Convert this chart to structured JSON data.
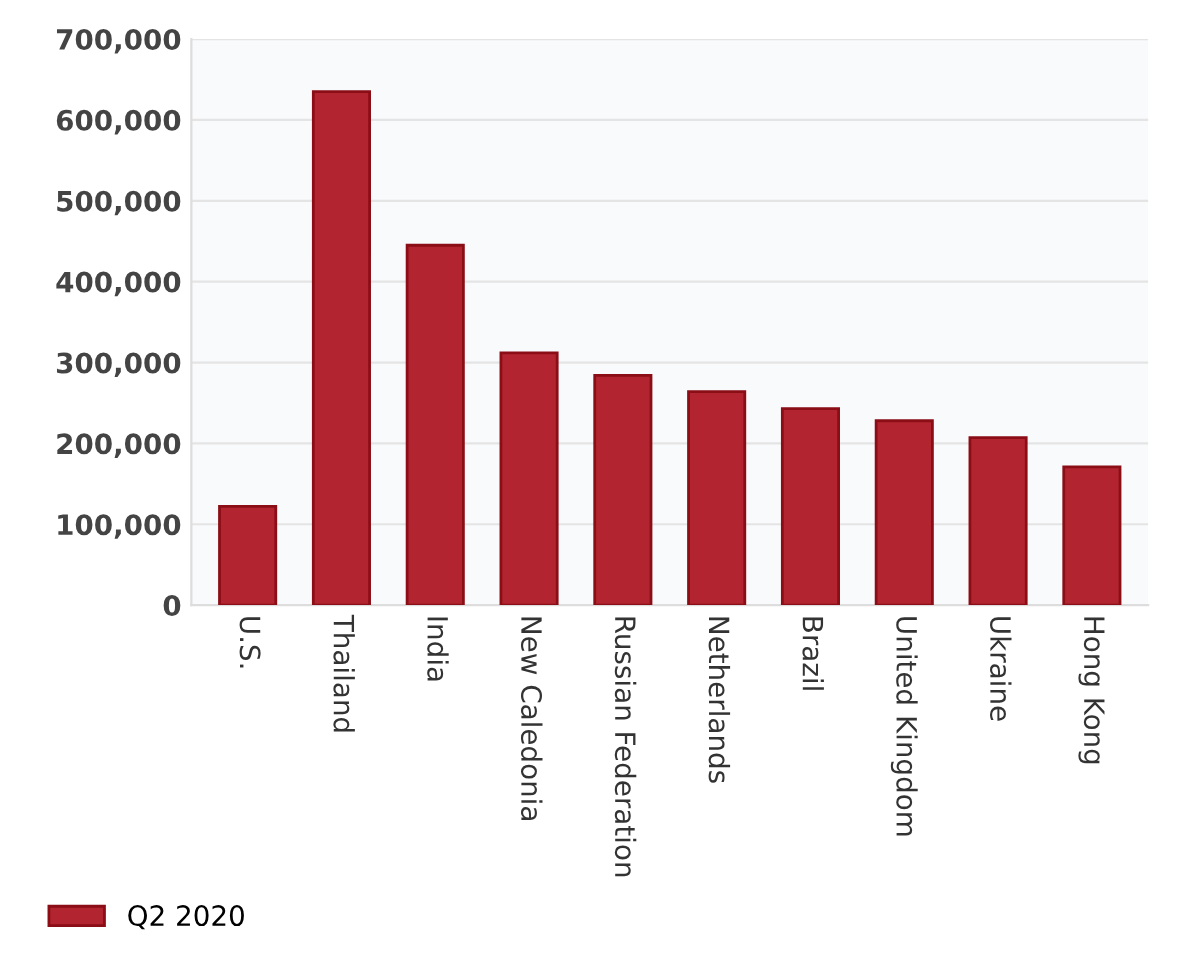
{
  "chart_data": {
    "type": "bar",
    "categories": [
      "U.S.",
      "Thailand",
      "India",
      "New Caledonia",
      "Russian Federation",
      "Netherlands",
      "Brazil",
      "United Kingdom",
      "Ukraine",
      "Hong Kong"
    ],
    "series": [
      {
        "name": "Q2 2020",
        "color": "#b22530",
        "values": [
          122000,
          635000,
          445000,
          312000,
          284000,
          264000,
          243000,
          228000,
          207000,
          171000
        ]
      }
    ],
    "ylim": [
      0,
      700000
    ],
    "yticks": [
      {
        "value": 0,
        "label": "0"
      },
      {
        "value": 100000,
        "label": "100,000"
      },
      {
        "value": 200000,
        "label": "200,000"
      },
      {
        "value": 300000,
        "label": "300,000"
      },
      {
        "value": 400000,
        "label": "400,000"
      },
      {
        "value": 500000,
        "label": "500,000"
      },
      {
        "value": 600000,
        "label": "600,000"
      },
      {
        "value": 700000,
        "label": "700,000"
      }
    ],
    "grid": "y",
    "legend": "bottom left"
  }
}
